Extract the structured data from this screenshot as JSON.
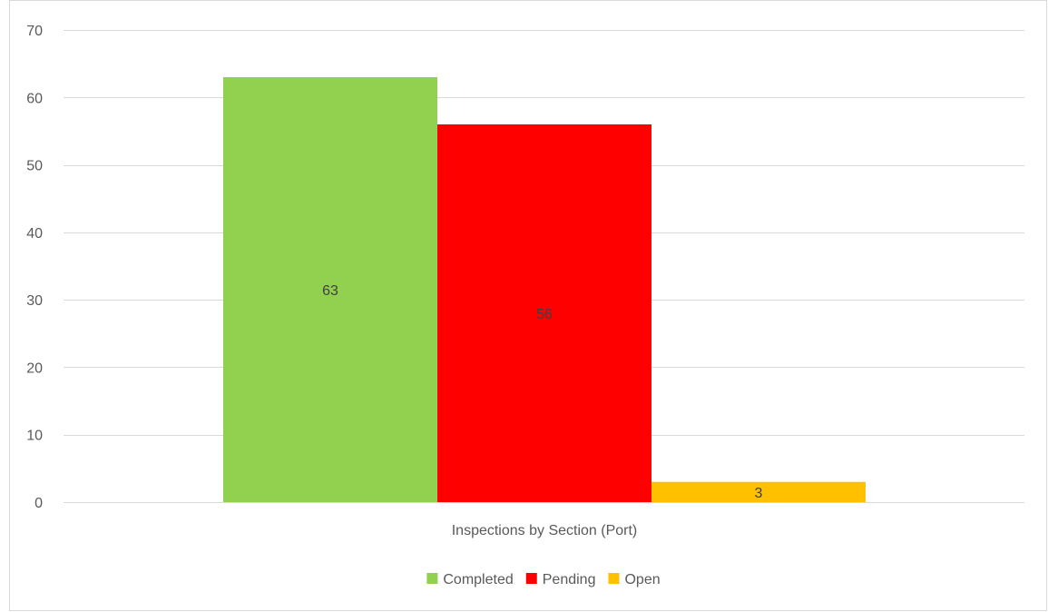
{
  "chart_data": {
    "type": "bar",
    "categories": [
      "Inspections by Section (Port)"
    ],
    "series": [
      {
        "name": "Completed",
        "values": [
          63
        ],
        "color": "#92D050"
      },
      {
        "name": "Pending",
        "values": [
          56
        ],
        "color": "#FF0000"
      },
      {
        "name": "Open",
        "values": [
          3
        ],
        "color": "#FFC000"
      }
    ],
    "title": "",
    "xlabel": "",
    "ylabel": "",
    "ylim": [
      0,
      70
    ],
    "yticks": [
      0,
      10,
      20,
      30,
      40,
      50,
      60,
      70
    ],
    "grid": true,
    "data_labels": true,
    "legend_position": "bottom"
  }
}
